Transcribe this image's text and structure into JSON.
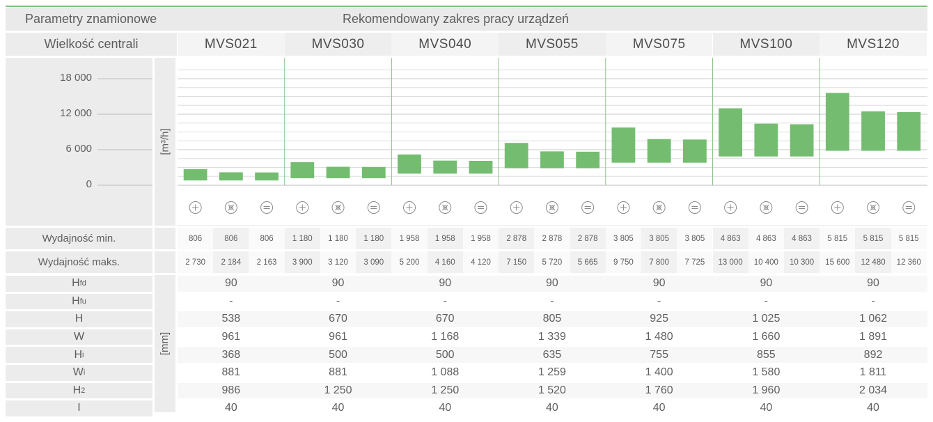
{
  "header": {
    "params_label": "Parametry znamionowe",
    "range_label": "Rekomendowany zakres pracy urządzeń",
    "size_label": "Wielkość centrali"
  },
  "models": [
    "MVS021",
    "MVS030",
    "MVS040",
    "MVS055",
    "MVS075",
    "MVS100",
    "MVS120"
  ],
  "units": {
    "flow": "[m³/h]",
    "dims": "[mm]"
  },
  "mode_icons": [
    "plus-circle-icon",
    "fan-icon",
    "minus-circle-icon"
  ],
  "flow_rows": {
    "min_label": "Wydajność min.",
    "max_label": "Wydajność maks.",
    "min": [
      "806",
      "806",
      "806",
      "1 180",
      "1 180",
      "1 180",
      "1 958",
      "1 958",
      "1 958",
      "2 878",
      "2 878",
      "2 878",
      "3 805",
      "3 805",
      "3 805",
      "4 863",
      "4 863",
      "4 863",
      "5 815",
      "5 815",
      "5 815"
    ],
    "max": [
      "2 730",
      "2 184",
      "2 163",
      "3 900",
      "3 120",
      "3 090",
      "5 200",
      "4 160",
      "4 120",
      "7 150",
      "5 720",
      "5 665",
      "9 750",
      "7 800",
      "7 725",
      "13 000",
      "10 400",
      "10 300",
      "15 600",
      "12 480",
      "12 360"
    ]
  },
  "dim_rows": [
    {
      "label": "H",
      "sub": "fd",
      "values": [
        "90",
        "90",
        "90",
        "90",
        "90",
        "90",
        "90"
      ]
    },
    {
      "label": "H",
      "sub": "fu",
      "values": [
        "-",
        "-",
        "-",
        "-",
        "-",
        "-",
        "-"
      ]
    },
    {
      "label": "H",
      "sub": "",
      "values": [
        "538",
        "670",
        "670",
        "805",
        "925",
        "1 025",
        "1 062"
      ]
    },
    {
      "label": "W",
      "sub": "",
      "values": [
        "961",
        "961",
        "1 168",
        "1 339",
        "1 480",
        "1 660",
        "1 891"
      ]
    },
    {
      "label": "H",
      "sub": "i",
      "values": [
        "368",
        "500",
        "500",
        "635",
        "755",
        "855",
        "892"
      ]
    },
    {
      "label": "W",
      "sub": "i",
      "values": [
        "881",
        "881",
        "1 088",
        "1 259",
        "1 400",
        "1 580",
        "1 811"
      ]
    },
    {
      "label": "H",
      "sub": "2",
      "values": [
        "986",
        "1 250",
        "1 250",
        "1 520",
        "1 760",
        "1 960",
        "2 034"
      ]
    },
    {
      "label": "I",
      "sub": "",
      "values": [
        "40",
        "40",
        "40",
        "40",
        "40",
        "40",
        "40"
      ]
    }
  ],
  "chart_data": {
    "type": "bar",
    "title": "Rekomendowany zakres pracy urządzeń",
    "ylabel": "[m³/h]",
    "ylim": [
      0,
      18000
    ],
    "yticks": [
      "18 000",
      "12 000",
      "6 000",
      "0"
    ],
    "ytick_values": [
      18000,
      12000,
      6000,
      0
    ],
    "categories": [
      "MVS021",
      "MVS030",
      "MVS040",
      "MVS055",
      "MVS075",
      "MVS100",
      "MVS120"
    ],
    "series_per_category": 3,
    "bar_color": "#74bd70",
    "ranges": [
      [
        806,
        2730
      ],
      [
        806,
        2184
      ],
      [
        806,
        2163
      ],
      [
        1180,
        3900
      ],
      [
        1180,
        3120
      ],
      [
        1180,
        3090
      ],
      [
        1958,
        5200
      ],
      [
        1958,
        4160
      ],
      [
        1958,
        4120
      ],
      [
        2878,
        7150
      ],
      [
        2878,
        5720
      ],
      [
        2878,
        5665
      ],
      [
        3805,
        9750
      ],
      [
        3805,
        7800
      ],
      [
        3805,
        7725
      ],
      [
        4863,
        13000
      ],
      [
        4863,
        10400
      ],
      [
        4863,
        10300
      ],
      [
        5815,
        15600
      ],
      [
        5815,
        12480
      ],
      [
        5815,
        12360
      ]
    ]
  }
}
